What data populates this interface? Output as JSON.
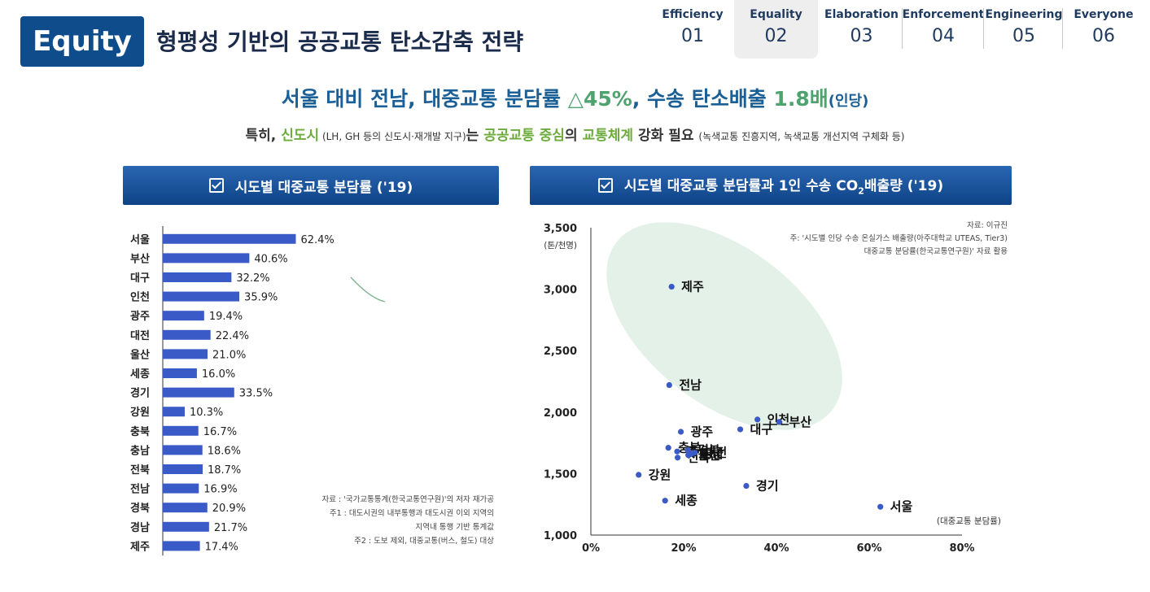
{
  "header": {
    "badge": "Equity",
    "title": "형평성 기반의 공공교통 탄소감축 전략",
    "nav": [
      {
        "label": "Efficiency",
        "num": "01"
      },
      {
        "label": "Equality",
        "num": "02"
      },
      {
        "label": "Elaboration",
        "num": "03"
      },
      {
        "label": "Enforcement",
        "num": "04"
      },
      {
        "label": "Engineering",
        "num": "05"
      },
      {
        "label": "Everyone",
        "num": "06"
      }
    ]
  },
  "headline": {
    "part1": "서울 대비 전남, 대중교통 분담률 ",
    "part2": "△45%",
    "part3": ", 수송 탄소배출 ",
    "part4": "1.8배",
    "part5": "(인당)"
  },
  "subline": {
    "p1": "특히, ",
    "p2": "신도시",
    "p3": " (LH, GH 등의 신도시·재개발 지구)",
    "p4": "는 ",
    "p5": "공공교통 중심",
    "p6": "의 ",
    "p7": "교통체계",
    "p8": " 강화 필요 ",
    "p9": "(녹색교통 진흥지역, 녹색교통 개선지역 구체화 등)"
  },
  "left_panel": {
    "title": "시도별 대중교통 분담률 ('19)",
    "notes": [
      "자료 : '국가교통통계(한국교통연구원)'의 저자 재가공",
      "주1 :  대도시권의 내부통행과 대도시권 이외 지역의",
      "지역내 통행 기반 통계값",
      "주2 :  도보 제외, 대중교통(버스, 철도) 대상"
    ]
  },
  "right_panel": {
    "title_a": "시도별 대중교통 분담률과 1인 수송 CO",
    "title_sub": "2",
    "title_b": "배출량 ('19)",
    "notes": [
      "자료: 이규진",
      "주: '시도별 인당 수송 온실가스 배출량(아주대학교 UTEAS, Tier3)",
      "대중교통 분담률(한국교통연구원)' 자료 활용"
    ]
  },
  "chart_data": [
    {
      "type": "bar",
      "orientation": "horizontal",
      "title": "시도별 대중교통 분담률 ('19)",
      "categories": [
        "서울",
        "부산",
        "대구",
        "인천",
        "광주",
        "대전",
        "울산",
        "세종",
        "경기",
        "강원",
        "충북",
        "충남",
        "전북",
        "전남",
        "경북",
        "경남",
        "제주"
      ],
      "values": [
        62.4,
        40.6,
        32.2,
        35.9,
        19.4,
        22.4,
        21.0,
        16.0,
        33.5,
        10.3,
        16.7,
        18.6,
        18.7,
        16.9,
        20.9,
        21.7,
        17.4
      ],
      "labels": [
        "62.4%",
        "40.6%",
        "32.2%",
        "35.9%",
        "19.4%",
        "22.4%",
        "21.0%",
        "16.0%",
        "33.5%",
        "10.3%",
        "16.7%",
        "18.6%",
        "18.7%",
        "16.9%",
        "20.9%",
        "21.7%",
        "17.4%"
      ],
      "xlim": [
        0,
        100
      ],
      "bar_color": "#3a5bc7"
    },
    {
      "type": "scatter",
      "title": "시도별 대중교통 분담률과 1인 수송 CO2배출량 ('19)",
      "xlabel": "(대중교통 분담률)",
      "ylabel": "(톤/천명)",
      "xlim": [
        0,
        80
      ],
      "ylim": [
        1000,
        3500
      ],
      "xticks": [
        "0%",
        "20%",
        "40%",
        "60%",
        "80%"
      ],
      "yticks": [
        "1,000",
        "1,500",
        "2,000",
        "2,500",
        "3,000",
        "3,500"
      ],
      "point_color": "#3a5bc7",
      "points": [
        {
          "label": "제주",
          "x": 17.4,
          "y": 3020
        },
        {
          "label": "전남",
          "x": 16.9,
          "y": 2220
        },
        {
          "label": "광주",
          "x": 19.4,
          "y": 1840
        },
        {
          "label": "대구",
          "x": 32.2,
          "y": 1860
        },
        {
          "label": "인천",
          "x": 35.9,
          "y": 1940
        },
        {
          "label": "부산",
          "x": 40.6,
          "y": 1920
        },
        {
          "label": "충북",
          "x": 16.7,
          "y": 1710
        },
        {
          "label": "충남",
          "x": 18.6,
          "y": 1680
        },
        {
          "label": "전북",
          "x": 18.7,
          "y": 1630
        },
        {
          "label": "대전",
          "x": 22.4,
          "y": 1670
        },
        {
          "label": "울산",
          "x": 21.0,
          "y": 1650
        },
        {
          "label": "경북",
          "x": 20.9,
          "y": 1690
        },
        {
          "label": "경남",
          "x": 21.7,
          "y": 1660
        },
        {
          "label": "강원",
          "x": 10.3,
          "y": 1490
        },
        {
          "label": "세종",
          "x": 16.0,
          "y": 1280
        },
        {
          "label": "경기",
          "x": 33.5,
          "y": 1400
        },
        {
          "label": "서울",
          "x": 62.4,
          "y": 1230
        }
      ]
    }
  ]
}
